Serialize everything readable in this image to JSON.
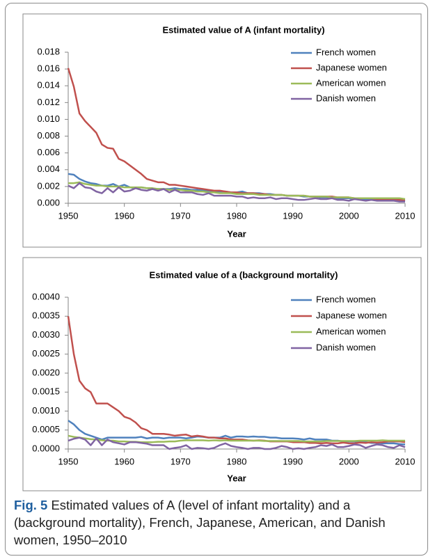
{
  "chart_data": [
    {
      "type": "line",
      "title": "Estimated value of A (infant mortality)",
      "xlabel": "Year",
      "legend": "upper right",
      "grid": false,
      "x": [
        1950,
        1951,
        1952,
        1953,
        1954,
        1955,
        1956,
        1957,
        1958,
        1959,
        1960,
        1961,
        1962,
        1963,
        1964,
        1965,
        1966,
        1967,
        1968,
        1969,
        1970,
        1971,
        1972,
        1973,
        1974,
        1975,
        1976,
        1977,
        1978,
        1979,
        1980,
        1981,
        1982,
        1983,
        1984,
        1985,
        1986,
        1987,
        1988,
        1989,
        1990,
        1991,
        1992,
        1993,
        1994,
        1995,
        1996,
        1997,
        1998,
        1999,
        2000,
        2001,
        2002,
        2003,
        2004,
        2005,
        2006,
        2007,
        2008,
        2009,
        2010
      ],
      "xlim": [
        1950,
        2010
      ],
      "xticks": [
        1950,
        1960,
        1970,
        1980,
        1990,
        2000,
        2010
      ],
      "ylim": [
        0,
        0.018
      ],
      "yticks": [
        {
          "value": 0,
          "label": "0.000"
        },
        {
          "value": 0.002,
          "label": "0.002"
        },
        {
          "value": 0.004,
          "label": "0.004"
        },
        {
          "value": 0.006,
          "label": "0.006"
        },
        {
          "value": 0.008,
          "label": "0.008"
        },
        {
          "value": 0.01,
          "label": "0.010"
        },
        {
          "value": 0.012,
          "label": "0.012"
        },
        {
          "value": 0.014,
          "label": "0.014"
        },
        {
          "value": 0.016,
          "label": "0.016"
        },
        {
          "value": 0.018,
          "label": "0.018"
        }
      ],
      "series": [
        {
          "name": "French women",
          "color": "#4f81bd",
          "values": [
            0.0035,
            0.0034,
            0.0029,
            0.0026,
            0.0024,
            0.0023,
            0.0021,
            0.0021,
            0.0023,
            0.002,
            0.0022,
            0.0019,
            0.0018,
            0.0019,
            0.0018,
            0.0017,
            0.0017,
            0.0017,
            0.0017,
            0.0018,
            0.0017,
            0.0017,
            0.0016,
            0.0016,
            0.0015,
            0.0015,
            0.0014,
            0.0014,
            0.0014,
            0.0013,
            0.0013,
            0.0014,
            0.0012,
            0.0012,
            0.0012,
            0.0011,
            0.0011,
            0.001,
            0.001,
            0.0009,
            0.0009,
            0.0009,
            0.0008,
            0.0008,
            0.0008,
            0.0007,
            0.0007,
            0.0007,
            0.0006,
            0.0006,
            0.0006,
            0.0005,
            0.0005,
            0.0005,
            0.0005,
            0.0004,
            0.0004,
            0.0004,
            0.0004,
            0.0004,
            0.0003
          ]
        },
        {
          "name": "Japanese women",
          "color": "#c0504d",
          "values": [
            0.0161,
            0.0139,
            0.0107,
            0.0098,
            0.0091,
            0.0084,
            0.007,
            0.0066,
            0.0065,
            0.0053,
            0.005,
            0.0045,
            0.004,
            0.0035,
            0.0029,
            0.0027,
            0.0025,
            0.0025,
            0.0022,
            0.0022,
            0.0021,
            0.002,
            0.0019,
            0.0018,
            0.0017,
            0.0016,
            0.0015,
            0.0015,
            0.0014,
            0.0013,
            0.0013,
            0.0012,
            0.0012,
            0.0012,
            0.0011,
            0.0011,
            0.001,
            0.001,
            0.001,
            0.0009,
            0.0009,
            0.0009,
            0.0009,
            0.0008,
            0.0008,
            0.0008,
            0.0008,
            0.0008,
            0.0007,
            0.0007,
            0.0007,
            0.0006,
            0.0006,
            0.0006,
            0.0006,
            0.0005,
            0.0005,
            0.0005,
            0.0005,
            0.0004,
            0.0004
          ]
        },
        {
          "name": "American women",
          "color": "#9bbb59",
          "values": [
            0.0024,
            0.0024,
            0.0025,
            0.0023,
            0.0022,
            0.0021,
            0.0021,
            0.002,
            0.002,
            0.002,
            0.0019,
            0.0019,
            0.0019,
            0.0019,
            0.0018,
            0.0018,
            0.0017,
            0.0017,
            0.0016,
            0.0016,
            0.0016,
            0.0015,
            0.0015,
            0.0014,
            0.0014,
            0.0013,
            0.0013,
            0.0012,
            0.0012,
            0.0012,
            0.0011,
            0.0011,
            0.0011,
            0.0011,
            0.001,
            0.001,
            0.001,
            0.001,
            0.001,
            0.0009,
            0.0009,
            0.0009,
            0.0009,
            0.0008,
            0.0008,
            0.0008,
            0.0008,
            0.0007,
            0.0007,
            0.0007,
            0.0007,
            0.0006,
            0.0006,
            0.0006,
            0.0006,
            0.0006,
            0.0006,
            0.0006,
            0.0006,
            0.0006,
            0.0005
          ]
        },
        {
          "name": "Danish women",
          "color": "#8064a2",
          "values": [
            0.0021,
            0.0018,
            0.0024,
            0.0019,
            0.0018,
            0.0014,
            0.0012,
            0.0018,
            0.0013,
            0.0019,
            0.0014,
            0.0015,
            0.0018,
            0.0016,
            0.0015,
            0.0017,
            0.0015,
            0.0017,
            0.0013,
            0.0016,
            0.0013,
            0.0013,
            0.0013,
            0.0011,
            0.001,
            0.0012,
            0.0009,
            0.0009,
            0.0009,
            0.0009,
            0.0008,
            0.0008,
            0.0006,
            0.0007,
            0.0006,
            0.0006,
            0.0007,
            0.0005,
            0.0006,
            0.0006,
            0.0005,
            0.0004,
            0.0004,
            0.0005,
            0.0006,
            0.0005,
            0.0005,
            0.0006,
            0.0004,
            0.0004,
            0.0003,
            0.0005,
            0.0004,
            0.0003,
            0.0004,
            0.0003,
            0.0003,
            0.0003,
            0.0003,
            0.0002,
            0.0002
          ]
        }
      ]
    },
    {
      "type": "line",
      "title": "Estimated value of a (background mortality)",
      "xlabel": "Year",
      "legend": "upper right",
      "grid": false,
      "x": [
        1950,
        1951,
        1952,
        1953,
        1954,
        1955,
        1956,
        1957,
        1958,
        1959,
        1960,
        1961,
        1962,
        1963,
        1964,
        1965,
        1966,
        1967,
        1968,
        1969,
        1970,
        1971,
        1972,
        1973,
        1974,
        1975,
        1976,
        1977,
        1978,
        1979,
        1980,
        1981,
        1982,
        1983,
        1984,
        1985,
        1986,
        1987,
        1988,
        1989,
        1990,
        1991,
        1992,
        1993,
        1994,
        1995,
        1996,
        1997,
        1998,
        1999,
        2000,
        2001,
        2002,
        2003,
        2004,
        2005,
        2006,
        2007,
        2008,
        2009,
        2010
      ],
      "xlim": [
        1950,
        2010
      ],
      "xticks": [
        1950,
        1960,
        1970,
        1980,
        1990,
        2000,
        2010
      ],
      "ylim": [
        0,
        0.004
      ],
      "yticks": [
        {
          "value": 0,
          "label": "0.0000"
        },
        {
          "value": 0.0005,
          "label": "0.0005"
        },
        {
          "value": 0.001,
          "label": "0.0010"
        },
        {
          "value": 0.0015,
          "label": "0.0015"
        },
        {
          "value": 0.002,
          "label": "0.0020"
        },
        {
          "value": 0.0025,
          "label": "0.0025"
        },
        {
          "value": 0.003,
          "label": "0.0030"
        },
        {
          "value": 0.0035,
          "label": "0.0035"
        },
        {
          "value": 0.004,
          "label": "0.0040"
        }
      ],
      "series": [
        {
          "name": "French women",
          "color": "#4f81bd",
          "values": [
            0.00075,
            0.00065,
            0.0005,
            0.0004,
            0.00035,
            0.0003,
            0.00025,
            0.0003,
            0.0003,
            0.0003,
            0.0003,
            0.0003,
            0.0003,
            0.00032,
            0.00028,
            0.0003,
            0.0003,
            0.00028,
            0.0003,
            0.0003,
            0.0003,
            0.00028,
            0.0003,
            0.00033,
            0.00032,
            0.0003,
            0.0003,
            0.0003,
            0.00035,
            0.0003,
            0.00033,
            0.00033,
            0.00032,
            0.00033,
            0.00032,
            0.00032,
            0.0003,
            0.0003,
            0.00028,
            0.00028,
            0.00028,
            0.00027,
            0.00025,
            0.00028,
            0.00025,
            0.00025,
            0.00025,
            0.00022,
            0.00022,
            0.0002,
            0.0002,
            0.0002,
            0.00018,
            0.00018,
            0.00016,
            0.00016,
            0.00015,
            0.00015,
            0.00015,
            0.00013,
            0.00012
          ]
        },
        {
          "name": "Japanese women",
          "color": "#c0504d",
          "values": [
            0.0035,
            0.0025,
            0.0018,
            0.0016,
            0.0015,
            0.0012,
            0.0012,
            0.0012,
            0.0011,
            0.001,
            0.00085,
            0.0008,
            0.0007,
            0.00055,
            0.0005,
            0.0004,
            0.0004,
            0.0004,
            0.00038,
            0.00035,
            0.00037,
            0.00038,
            0.00033,
            0.00035,
            0.00033,
            0.0003,
            0.0003,
            0.00028,
            0.00028,
            0.00025,
            0.00025,
            0.00025,
            0.00023,
            0.00022,
            0.00023,
            0.00022,
            0.0002,
            0.0002,
            0.0002,
            0.0002,
            0.00018,
            0.00018,
            0.00018,
            0.00016,
            0.00016,
            0.00015,
            0.00016,
            0.00015,
            0.00015,
            0.00017,
            0.00015,
            0.00015,
            0.00017,
            0.00016,
            0.00018,
            0.00017,
            0.00018,
            0.0002,
            0.0002,
            0.0002,
            0.00018
          ]
        },
        {
          "name": "American women",
          "color": "#9bbb59",
          "values": [
            0.00035,
            0.00032,
            0.0003,
            0.00028,
            0.00026,
            0.00025,
            0.00023,
            0.00022,
            0.00022,
            0.0002,
            0.0002,
            0.00019,
            0.00019,
            0.00018,
            0.00018,
            0.00018,
            0.00019,
            0.00019,
            0.0002,
            0.0002,
            0.00022,
            0.00023,
            0.00023,
            0.00023,
            0.00023,
            0.00022,
            0.00023,
            0.00022,
            0.00023,
            0.00022,
            0.00022,
            0.00022,
            0.00022,
            0.00022,
            0.00022,
            0.00021,
            0.00021,
            0.00021,
            0.00021,
            0.00021,
            0.00021,
            0.00021,
            0.0002,
            0.0002,
            0.0002,
            0.0002,
            0.00021,
            0.00021,
            0.00021,
            0.00021,
            0.00021,
            0.00021,
            0.00022,
            0.00022,
            0.00022,
            0.00022,
            0.00023,
            0.00022,
            0.00022,
            0.00022,
            0.00022
          ]
        },
        {
          "name": "Danish women",
          "color": "#8064a2",
          "values": [
            0.00022,
            0.00027,
            0.0003,
            0.00025,
            0.0001,
            0.00028,
            0.0001,
            0.00025,
            0.00018,
            0.00015,
            0.00012,
            0.00018,
            0.00018,
            0.00016,
            0.00014,
            0.0001,
            0.0001,
            0.0001,
            0,
            3e-05,
            5e-05,
            0.0001,
            0,
            3e-05,
            2e-05,
            0,
            3e-05,
            0.0001,
            0.00015,
            8e-05,
            5e-05,
            3e-05,
            0,
            3e-05,
            3e-05,
            0,
            0,
            3e-05,
            8e-05,
            5e-05,
            0,
            2e-05,
            0,
            3e-05,
            5e-05,
            0.0001,
            8e-05,
            0.00012,
            5e-05,
            5e-05,
            8e-05,
            0.00012,
            0.0001,
            3e-05,
            8e-05,
            0.00012,
            0.0001,
            5e-05,
            3e-05,
            0.0001,
            5e-05
          ]
        }
      ]
    }
  ],
  "caption": {
    "label": "Fig. 5",
    "text": "Estimated values of A (level of infant mortality) and a (background mortality), French, Japanese, American, and Danish women, 1950–2010"
  }
}
